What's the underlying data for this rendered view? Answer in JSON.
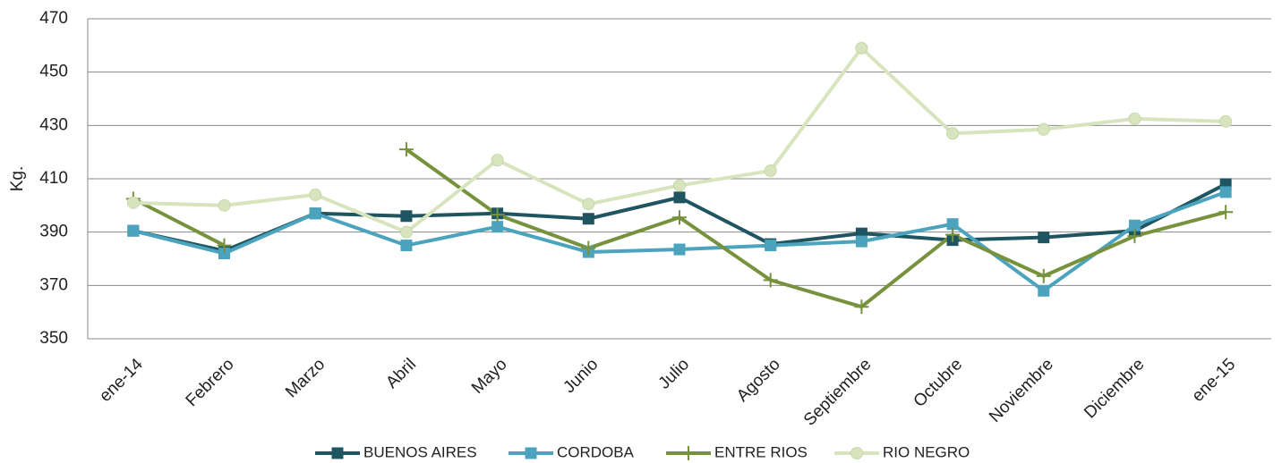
{
  "chart_data": {
    "type": "line",
    "y_label": "Kg.",
    "categories": [
      "ene-14",
      "Febrero",
      "Marzo",
      "Abril",
      "Mayo",
      "Junio",
      "Julio",
      "Agosto",
      "Septiembre",
      "Octubre",
      "Noviembre",
      "Diciembre",
      "ene-15"
    ],
    "series": [
      {
        "name": "BUENOS AIRES",
        "color": "#1f5560",
        "marker": "square",
        "values": [
          390.5,
          383,
          397,
          396,
          397,
          395,
          403,
          385.5,
          389.5,
          387,
          388,
          390.5,
          408
        ]
      },
      {
        "name": "CORDOBA",
        "color": "#4ba3bd",
        "marker": "square",
        "values": [
          390.5,
          382,
          397,
          385,
          392,
          382.5,
          383.5,
          385,
          386.5,
          393,
          368,
          392.5,
          405
        ]
      },
      {
        "name": "ENTRE RIOS",
        "color": "#76923c",
        "marker": "plus",
        "values": [
          402.5,
          385,
          null,
          421,
          396.5,
          384,
          395.5,
          372,
          362,
          389,
          373.5,
          388.5,
          397.5
        ]
      },
      {
        "name": "RIO NEGRO",
        "color": "#d7e4bd",
        "marker": "circle",
        "values": [
          401,
          400,
          404,
          390,
          417,
          400.5,
          407.5,
          413,
          459,
          427,
          428.5,
          432.5,
          431.5
        ]
      }
    ],
    "ylim": [
      350,
      470
    ],
    "yticks": [
      350,
      370,
      390,
      410,
      430,
      450,
      470
    ],
    "grid": true,
    "legend": "bottom"
  }
}
